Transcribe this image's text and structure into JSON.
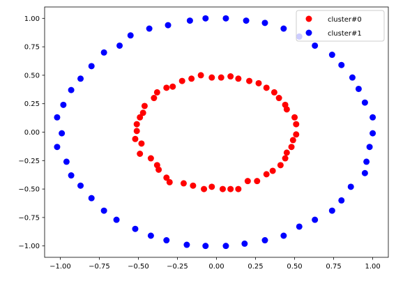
{
  "chart_data": {
    "type": "scatter",
    "title": "",
    "xlabel": "",
    "ylabel": "",
    "xlim": [
      -1.1,
      1.1
    ],
    "ylim": [
      -1.1,
      1.1
    ],
    "xticks": [
      -1.0,
      -0.75,
      -0.5,
      -0.25,
      0.0,
      0.25,
      0.5,
      0.75,
      1.0
    ],
    "yticks": [
      -1.0,
      -0.75,
      -0.5,
      -0.25,
      0.0,
      0.25,
      0.5,
      0.75,
      1.0
    ],
    "xtick_labels": [
      "−1.00",
      "−0.75",
      "−0.50",
      "−0.25",
      "0.00",
      "0.25",
      "0.50",
      "0.75",
      "1.00"
    ],
    "ytick_labels": [
      "−1.00",
      "−0.75",
      "−0.50",
      "−0.25",
      "0.00",
      "0.25",
      "0.50",
      "0.75",
      "1.00"
    ],
    "grid": false,
    "legend_position": "top-right",
    "series": [
      {
        "name": "cluster#0",
        "color": "#ff0000",
        "points": [
          [
            0.5,
            0.13
          ],
          [
            0.51,
            0.07
          ],
          [
            0.51,
            -0.02
          ],
          [
            0.49,
            -0.07
          ],
          [
            0.48,
            -0.13
          ],
          [
            0.45,
            -0.18
          ],
          [
            0.44,
            -0.23
          ],
          [
            0.41,
            -0.29
          ],
          [
            0.36,
            -0.34
          ],
          [
            0.32,
            -0.37
          ],
          [
            0.26,
            -0.43
          ],
          [
            0.2,
            -0.43
          ],
          [
            0.14,
            -0.5
          ],
          [
            0.09,
            -0.5
          ],
          [
            0.04,
            -0.5
          ],
          [
            -0.03,
            -0.48
          ],
          [
            -0.08,
            -0.5
          ],
          [
            -0.15,
            -0.47
          ],
          [
            -0.21,
            -0.45
          ],
          [
            -0.3,
            -0.44
          ],
          [
            -0.32,
            -0.4
          ],
          [
            -0.37,
            -0.33
          ],
          [
            -0.38,
            -0.29
          ],
          [
            -0.42,
            -0.23
          ],
          [
            -0.49,
            -0.19
          ],
          [
            -0.48,
            -0.1
          ],
          [
            -0.52,
            -0.06
          ],
          [
            -0.51,
            0.01
          ],
          [
            -0.51,
            0.07
          ],
          [
            -0.49,
            0.13
          ],
          [
            -0.47,
            0.17
          ],
          [
            -0.46,
            0.23
          ],
          [
            -0.4,
            0.3
          ],
          [
            -0.38,
            0.35
          ],
          [
            -0.32,
            0.39
          ],
          [
            -0.28,
            0.4
          ],
          [
            -0.22,
            0.45
          ],
          [
            -0.16,
            0.47
          ],
          [
            -0.1,
            0.5
          ],
          [
            -0.03,
            0.48
          ],
          [
            0.03,
            0.48
          ],
          [
            0.09,
            0.49
          ],
          [
            0.14,
            0.47
          ],
          [
            0.21,
            0.45
          ],
          [
            0.27,
            0.43
          ],
          [
            0.32,
            0.39
          ],
          [
            0.37,
            0.35
          ],
          [
            0.4,
            0.3
          ],
          [
            0.44,
            0.24
          ],
          [
            0.45,
            0.2
          ]
        ]
      },
      {
        "name": "cluster#1",
        "color": "#0000ff",
        "points": [
          [
            1.0,
            0.13
          ],
          [
            1.0,
            -0.01
          ],
          [
            0.98,
            -0.13
          ],
          [
            0.96,
            -0.26
          ],
          [
            0.95,
            -0.36
          ],
          [
            0.86,
            -0.48
          ],
          [
            0.8,
            -0.6
          ],
          [
            0.74,
            -0.69
          ],
          [
            0.63,
            -0.77
          ],
          [
            0.53,
            -0.83
          ],
          [
            0.43,
            -0.91
          ],
          [
            0.31,
            -0.95
          ],
          [
            0.18,
            -0.98
          ],
          [
            0.06,
            -1.0
          ],
          [
            -0.07,
            -1.0
          ],
          [
            -0.19,
            -0.99
          ],
          [
            -0.32,
            -0.95
          ],
          [
            -0.42,
            -0.91
          ],
          [
            -0.52,
            -0.85
          ],
          [
            -0.64,
            -0.77
          ],
          [
            -0.72,
            -0.69
          ],
          [
            -0.8,
            -0.58
          ],
          [
            -0.87,
            -0.47
          ],
          [
            -0.93,
            -0.38
          ],
          [
            -0.96,
            -0.26
          ],
          [
            -1.02,
            -0.13
          ],
          [
            -0.99,
            -0.01
          ],
          [
            -1.02,
            0.13
          ],
          [
            -0.98,
            0.24
          ],
          [
            -0.93,
            0.37
          ],
          [
            -0.87,
            0.47
          ],
          [
            -0.8,
            0.58
          ],
          [
            -0.72,
            0.7
          ],
          [
            -0.62,
            0.76
          ],
          [
            -0.55,
            0.85
          ],
          [
            -0.43,
            0.91
          ],
          [
            -0.31,
            0.94
          ],
          [
            -0.17,
            0.98
          ],
          [
            -0.07,
            1.0
          ],
          [
            0.06,
            1.0
          ],
          [
            0.19,
            0.98
          ],
          [
            0.31,
            0.96
          ],
          [
            0.43,
            0.91
          ],
          [
            0.53,
            0.84
          ],
          [
            0.63,
            0.76
          ],
          [
            0.74,
            0.68
          ],
          [
            0.8,
            0.59
          ],
          [
            0.87,
            0.48
          ],
          [
            0.91,
            0.38
          ],
          [
            0.95,
            0.26
          ]
        ]
      }
    ]
  }
}
